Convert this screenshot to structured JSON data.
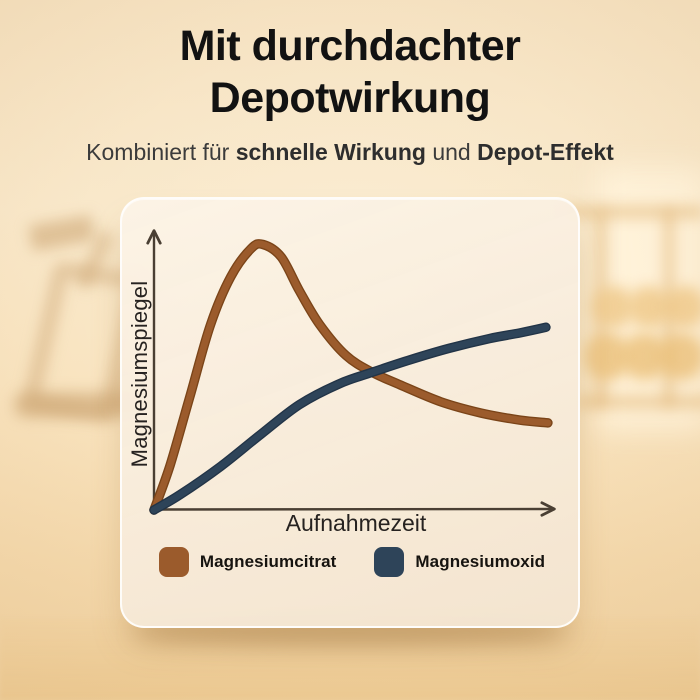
{
  "title": {
    "line1": "Mit durchdachter",
    "line2": "Depotwirkung"
  },
  "subtitle": {
    "prefix": "Kombiniert für",
    "bold1": "schnelle Wirkung",
    "connector": "und",
    "bold2": "Depot-Effekt"
  },
  "chart_data": {
    "type": "line",
    "title": "",
    "xlabel": "Aufnahmezeit",
    "ylabel": "Magnesiumspiegel",
    "xlim": [
      0,
      100
    ],
    "ylim": [
      0,
      100
    ],
    "grid": false,
    "axis_arrows": true,
    "legend_position": "bottom",
    "series": [
      {
        "name": "Magnesiumcitrat",
        "color": "#9B5B2C",
        "edge_color": "#7A4418",
        "points": [
          [
            0,
            0
          ],
          [
            4,
            16
          ],
          [
            9,
            41
          ],
          [
            14,
            66
          ],
          [
            19,
            83
          ],
          [
            24,
            93
          ],
          [
            27,
            94.5
          ],
          [
            31.5,
            90
          ],
          [
            36,
            78
          ],
          [
            41,
            66
          ],
          [
            47.5,
            55
          ],
          [
            54,
            49
          ],
          [
            61,
            44.5
          ],
          [
            71,
            38.5
          ],
          [
            81,
            34.5
          ],
          [
            90.5,
            32
          ],
          [
            97.5,
            31
          ]
        ]
      },
      {
        "name": "Magnesiumoxid",
        "color": "#2E4459",
        "edge_color": "#223447",
        "points": [
          [
            0,
            0
          ],
          [
            6.5,
            5.5
          ],
          [
            16.5,
            15.5
          ],
          [
            26.5,
            27
          ],
          [
            36,
            37.5
          ],
          [
            46,
            45
          ],
          [
            54,
            49
          ],
          [
            63.5,
            53.5
          ],
          [
            73,
            57.5
          ],
          [
            83,
            61
          ],
          [
            90.5,
            63
          ],
          [
            97,
            65
          ]
        ]
      }
    ]
  },
  "colors": {
    "background": "#F8E5C5",
    "card": "#F9EEDD",
    "title_text": "#121212",
    "subtitle_text": "#3B3B3B",
    "axis": "#4A3F33",
    "citrat_brown": "#9B5B2C",
    "oxid_navy": "#2E4459"
  }
}
